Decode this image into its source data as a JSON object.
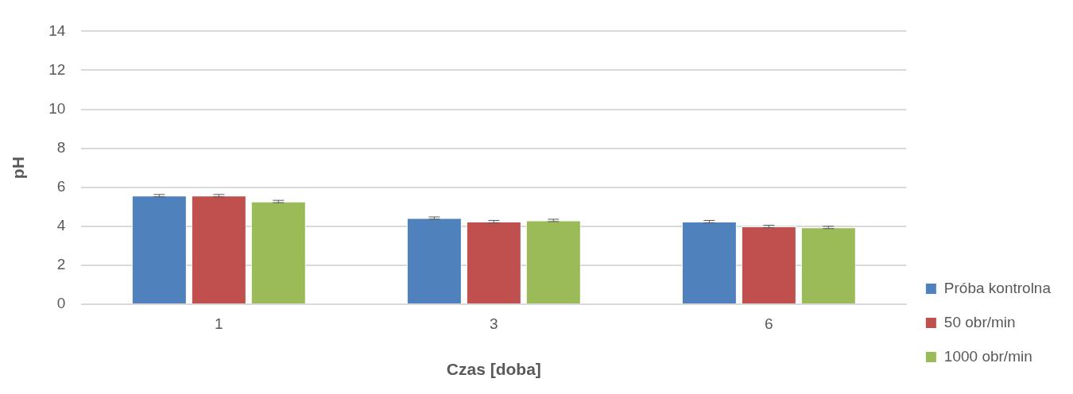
{
  "chart_data": {
    "type": "bar",
    "xlabel": "Czas [doba]",
    "ylabel": "pH",
    "categories": [
      "1",
      "3",
      "6"
    ],
    "series": [
      {
        "name": "Próba kontrolna",
        "color": "#4f81bd",
        "values": [
          5.57,
          4.42,
          4.24
        ],
        "errors": [
          0.06,
          0.06,
          0.06
        ]
      },
      {
        "name": "50 obr/min",
        "color": "#c0504d",
        "values": [
          5.57,
          4.24,
          3.99
        ],
        "errors": [
          0.06,
          0.06,
          0.06
        ]
      },
      {
        "name": "1000 obr/min",
        "color": "#9bbb59",
        "values": [
          5.27,
          4.3,
          3.94
        ],
        "errors": [
          0.06,
          0.06,
          0.06
        ]
      }
    ],
    "ylim": [
      0,
      14
    ],
    "yticks": [
      0,
      2,
      4,
      6,
      8,
      10,
      12,
      14
    ],
    "grid": "y",
    "legend": "right"
  }
}
